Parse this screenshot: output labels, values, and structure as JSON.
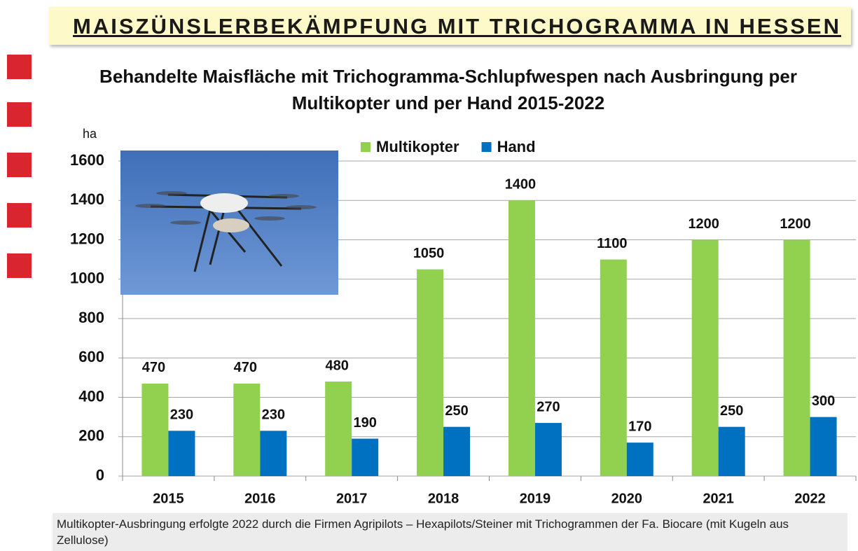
{
  "header": {
    "title": "MAISZÜNSLERBEKÄMPFUNG MIT TRICHOGRAMMA IN HESSEN"
  },
  "chart_data": {
    "type": "bar",
    "title": "Behandelte Maisfläche mit Trichogramma-Schlupfwespen nach Ausbringung per Multikopter und per Hand 2015-2022",
    "y_label": "ha",
    "categories": [
      "2015",
      "2016",
      "2017",
      "2018",
      "2019",
      "2020",
      "2021",
      "2022"
    ],
    "series": [
      {
        "name": "Multikopter",
        "color": "#92d050",
        "values": [
          470,
          470,
          480,
          1050,
          1400,
          1100,
          1200,
          1200
        ]
      },
      {
        "name": "Hand",
        "color": "#0070c0",
        "values": [
          230,
          230,
          190,
          250,
          270,
          170,
          250,
          300
        ]
      }
    ],
    "ylim": [
      0,
      1600
    ],
    "yticks": [
      0,
      200,
      400,
      600,
      800,
      1000,
      1200,
      1400,
      1600
    ],
    "grid": true,
    "legend": "top"
  },
  "footnote": "Multikopter-Ausbringung erfolgte 2022 durch die Firmen Agripilots – Hexapilots/Steiner mit Trichogrammen der Fa. Biocare (mit Kugeln aus Zellulose)"
}
